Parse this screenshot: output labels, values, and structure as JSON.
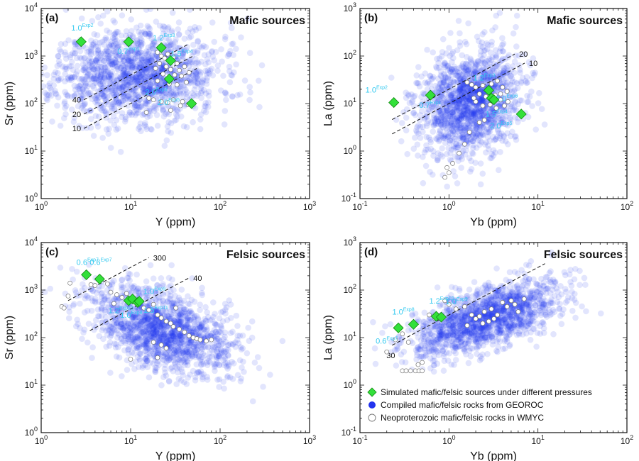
{
  "colors": {
    "georoc": "#2233ee",
    "sim_fill": "#33e03a",
    "sim_stroke": "#118811",
    "sim_label": "#33c9f0",
    "wmyc_fill": "#ffffff",
    "wmyc_stroke": "#777777"
  },
  "chart_data": [
    {
      "id": "a",
      "type": "scatter",
      "panel_label": "(a)",
      "title": "Mafic sources",
      "xlabel": "Y (ppm)",
      "ylabel": "Sr (ppm)",
      "xscale": "log",
      "yscale": "log",
      "xlim": [
        1,
        1000
      ],
      "ylim": [
        1,
        10000
      ],
      "x_tick_labels": [
        "10^0",
        "10^1",
        "10^2",
        "10^3"
      ],
      "y_tick_labels": [
        "10^0",
        "10^1",
        "10^2",
        "10^3",
        "10^4"
      ],
      "georoc_cloud": {
        "center": [
          12,
          400
        ],
        "spread_decades": [
          0.45,
          0.5
        ],
        "tilt": 0.1
      },
      "reference_lines": [
        {
          "label": "40",
          "ratio": 40
        },
        {
          "label": "20",
          "ratio": 20
        },
        {
          "label": "10",
          "ratio": 10
        }
      ],
      "simulated": [
        {
          "x": 2.8,
          "y": 2000,
          "label": "1.0",
          "exp": "Exp2"
        },
        {
          "x": 9.5,
          "y": 2000,
          "label": "0.7",
          "exp": "Exp1"
        },
        {
          "x": 22,
          "y": 1500,
          "label": "1.2",
          "exp": "Exp3"
        },
        {
          "x": 28,
          "y": 800,
          "label": "1.5",
          "exp": "Exp4"
        },
        {
          "x": 27,
          "y": 330,
          "label": "2.0",
          "exp": "Exp6"
        },
        {
          "x": 48,
          "y": 100,
          "label": "2.0",
          "exp": "Exp5"
        }
      ],
      "wmyc": [
        {
          "x": 20,
          "y": 1200
        },
        {
          "x": 22,
          "y": 1000
        },
        {
          "x": 24,
          "y": 900
        },
        {
          "x": 26,
          "y": 1100
        },
        {
          "x": 30,
          "y": 950
        },
        {
          "x": 33,
          "y": 700
        },
        {
          "x": 21,
          "y": 700
        },
        {
          "x": 19,
          "y": 550
        },
        {
          "x": 25,
          "y": 600
        },
        {
          "x": 28,
          "y": 520
        },
        {
          "x": 35,
          "y": 500
        },
        {
          "x": 40,
          "y": 600
        },
        {
          "x": 23,
          "y": 420
        },
        {
          "x": 31,
          "y": 400
        },
        {
          "x": 37,
          "y": 380
        },
        {
          "x": 45,
          "y": 450
        },
        {
          "x": 27,
          "y": 260
        },
        {
          "x": 33,
          "y": 250
        },
        {
          "x": 42,
          "y": 280
        },
        {
          "x": 20,
          "y": 300
        },
        {
          "x": 18,
          "y": 120
        },
        {
          "x": 22,
          "y": 110
        },
        {
          "x": 26,
          "y": 105
        },
        {
          "x": 30,
          "y": 120
        },
        {
          "x": 38,
          "y": 110
        },
        {
          "x": 16,
          "y": 130
        },
        {
          "x": 15,
          "y": 65
        },
        {
          "x": 28,
          "y": 72
        },
        {
          "x": 36,
          "y": 90
        },
        {
          "x": 44,
          "y": 95
        }
      ]
    },
    {
      "id": "b",
      "type": "scatter",
      "panel_label": "(b)",
      "title": "Mafic sources",
      "xlabel": "Yb (ppm)",
      "ylabel": "La (ppm)",
      "xscale": "log",
      "yscale": "log",
      "xlim": [
        0.1,
        100
      ],
      "ylim": [
        0.1,
        1000
      ],
      "x_tick_labels": [
        "10^-1",
        "10^0",
        "10^1",
        "10^2"
      ],
      "y_tick_labels": [
        "10^-1",
        "10^0",
        "10^1",
        "10^2",
        "10^3"
      ],
      "georoc_cloud": {
        "center": [
          1.7,
          10
        ],
        "spread_decades": [
          0.28,
          0.55
        ],
        "tilt": 0.35
      },
      "reference_lines": [
        {
          "label": "20",
          "ratio": 20
        },
        {
          "label": "10",
          "ratio": 10
        }
      ],
      "simulated": [
        {
          "x": 0.24,
          "y": 10.5,
          "label": "1.0",
          "exp": "Exp2"
        },
        {
          "x": 0.62,
          "y": 15,
          "label": "0.7",
          "exp": "Exp1"
        },
        {
          "x": 2.8,
          "y": 19,
          "label": "1.2",
          "exp": "Exp3"
        },
        {
          "x": 3.0,
          "y": 13,
          "label": "2.0",
          "exp": "Exp6"
        },
        {
          "x": 3.2,
          "y": 12,
          "label": "1.5",
          "exp": "Exp4"
        },
        {
          "x": 6.5,
          "y": 6,
          "label": "2.0",
          "exp": "Exp5"
        }
      ],
      "wmyc": [
        {
          "x": 1.6,
          "y": 28
        },
        {
          "x": 1.8,
          "y": 25
        },
        {
          "x": 2.0,
          "y": 22
        },
        {
          "x": 2.4,
          "y": 24
        },
        {
          "x": 2.7,
          "y": 20
        },
        {
          "x": 3.0,
          "y": 26
        },
        {
          "x": 3.5,
          "y": 30
        },
        {
          "x": 4.0,
          "y": 22
        },
        {
          "x": 4.5,
          "y": 18
        },
        {
          "x": 2.2,
          "y": 16
        },
        {
          "x": 2.6,
          "y": 14
        },
        {
          "x": 3.3,
          "y": 15
        },
        {
          "x": 3.8,
          "y": 12
        },
        {
          "x": 2.0,
          "y": 11
        },
        {
          "x": 2.4,
          "y": 9
        },
        {
          "x": 2.9,
          "y": 9.5
        },
        {
          "x": 3.4,
          "y": 8
        },
        {
          "x": 4.2,
          "y": 9
        },
        {
          "x": 4.6,
          "y": 11
        },
        {
          "x": 1.9,
          "y": 13
        },
        {
          "x": 2.2,
          "y": 4.0
        },
        {
          "x": 2.5,
          "y": 4.5
        },
        {
          "x": 1.5,
          "y": 1.4
        },
        {
          "x": 1.3,
          "y": 0.9
        },
        {
          "x": 1.1,
          "y": 0.55
        },
        {
          "x": 0.95,
          "y": 0.45
        },
        {
          "x": 1.0,
          "y": 0.35
        },
        {
          "x": 0.9,
          "y": 0.28
        },
        {
          "x": 1.7,
          "y": 2.5
        },
        {
          "x": 3.8,
          "y": 16
        }
      ]
    },
    {
      "id": "c",
      "type": "scatter",
      "panel_label": "(c)",
      "title": "Felsic sources",
      "xlabel": "Y (ppm)",
      "ylabel": "Sr (ppm)",
      "xscale": "log",
      "yscale": "log",
      "xlim": [
        1,
        1000
      ],
      "ylim": [
        1,
        10000
      ],
      "x_tick_labels": [
        "10^0",
        "10^1",
        "10^2",
        "10^3"
      ],
      "y_tick_labels": [
        "10^0",
        "10^1",
        "10^2",
        "10^3",
        "10^4"
      ],
      "georoc_cloud": {
        "center": [
          22,
          150
        ],
        "spread_decades": [
          0.4,
          0.42
        ],
        "tilt": -0.55
      },
      "reference_lines": [
        {
          "label": "300",
          "ratio": 300
        },
        {
          "label": "40",
          "ratio": 40
        }
      ],
      "simulated": [
        {
          "x": 3.2,
          "y": 2100,
          "label": "0.6",
          "exp": "Exp7"
        },
        {
          "x": 4.5,
          "y": 1700,
          "label": "0.6",
          "exp": "Exp7"
        },
        {
          "x": 9.5,
          "y": 600,
          "label": "1.0",
          "exp": "Exp8"
        },
        {
          "x": 10.5,
          "y": 650,
          "label": "1.2",
          "exp": "Exp10"
        },
        {
          "x": 12,
          "y": 550,
          "label": "1.0",
          "exp": "Exp9"
        },
        {
          "x": 12.5,
          "y": 580,
          "label": "1.5",
          "exp": "Exp11"
        }
      ],
      "wmyc": [
        {
          "x": 1.7,
          "y": 450
        },
        {
          "x": 1.8,
          "y": 420
        },
        {
          "x": 2.1,
          "y": 1400
        },
        {
          "x": 2.0,
          "y": 750
        },
        {
          "x": 3.6,
          "y": 1300
        },
        {
          "x": 4.0,
          "y": 1250
        },
        {
          "x": 5.5,
          "y": 1350
        },
        {
          "x": 6.0,
          "y": 900
        },
        {
          "x": 7.0,
          "y": 800
        },
        {
          "x": 8.0,
          "y": 700
        },
        {
          "x": 9.0,
          "y": 850
        },
        {
          "x": 14,
          "y": 420
        },
        {
          "x": 16,
          "y": 380
        },
        {
          "x": 18,
          "y": 500
        },
        {
          "x": 20,
          "y": 300
        },
        {
          "x": 22,
          "y": 260
        },
        {
          "x": 25,
          "y": 220
        },
        {
          "x": 28,
          "y": 200
        },
        {
          "x": 30,
          "y": 170
        },
        {
          "x": 35,
          "y": 150
        },
        {
          "x": 40,
          "y": 130
        },
        {
          "x": 45,
          "y": 110
        },
        {
          "x": 50,
          "y": 100
        },
        {
          "x": 55,
          "y": 95
        },
        {
          "x": 60,
          "y": 90
        },
        {
          "x": 70,
          "y": 85
        },
        {
          "x": 80,
          "y": 90
        },
        {
          "x": 18,
          "y": 80
        },
        {
          "x": 22,
          "y": 70
        },
        {
          "x": 25,
          "y": 60
        },
        {
          "x": 20,
          "y": 38
        },
        {
          "x": 10,
          "y": 35
        },
        {
          "x": 6.5,
          "y": 520
        },
        {
          "x": 32,
          "y": 420
        }
      ]
    },
    {
      "id": "d",
      "type": "scatter",
      "panel_label": "(d)",
      "title": "Felsic sources",
      "xlabel": "Yb (ppm)",
      "ylabel": "La (ppm)",
      "xscale": "log",
      "yscale": "log",
      "xlim": [
        0.1,
        100
      ],
      "ylim": [
        0.1,
        1000
      ],
      "x_tick_labels": [
        "10^-1",
        "10^0",
        "10^1",
        "10^2"
      ],
      "y_tick_labels": [
        "10^-1",
        "10^0",
        "10^1",
        "10^2",
        "10^3"
      ],
      "georoc_cloud": {
        "center": [
          2.6,
          25
        ],
        "spread_decades": [
          0.42,
          0.32
        ],
        "tilt": 0.55
      },
      "reference_lines": [
        {
          "label": "30",
          "ratio": 30
        }
      ],
      "simulated": [
        {
          "x": 0.27,
          "y": 16,
          "label": "0.6",
          "exp": "Exp7"
        },
        {
          "x": 0.4,
          "y": 19,
          "label": "1.0",
          "exp": "Exp8"
        },
        {
          "x": 0.72,
          "y": 28,
          "label": "1.2",
          "exp": "Exp10"
        },
        {
          "x": 0.82,
          "y": 27,
          "label": "1.0",
          "exp": "Exp9"
        }
      ],
      "wmyc": [
        {
          "x": 0.2,
          "y": 5
        },
        {
          "x": 0.25,
          "y": 9
        },
        {
          "x": 0.3,
          "y": 12
        },
        {
          "x": 0.35,
          "y": 8
        },
        {
          "x": 0.3,
          "y": 2.0
        },
        {
          "x": 0.33,
          "y": 2.0
        },
        {
          "x": 0.37,
          "y": 2.0
        },
        {
          "x": 0.42,
          "y": 2.0
        },
        {
          "x": 0.46,
          "y": 2.0
        },
        {
          "x": 0.5,
          "y": 2.0
        },
        {
          "x": 0.45,
          "y": 2.7
        },
        {
          "x": 0.5,
          "y": 3.0
        },
        {
          "x": 0.9,
          "y": 60
        },
        {
          "x": 1.0,
          "y": 50
        },
        {
          "x": 1.2,
          "y": 40
        },
        {
          "x": 1.5,
          "y": 45
        },
        {
          "x": 1.8,
          "y": 30
        },
        {
          "x": 2.0,
          "y": 25
        },
        {
          "x": 2.2,
          "y": 28
        },
        {
          "x": 2.5,
          "y": 35
        },
        {
          "x": 2.8,
          "y": 22
        },
        {
          "x": 3.0,
          "y": 40
        },
        {
          "x": 3.5,
          "y": 30
        },
        {
          "x": 4.0,
          "y": 55
        },
        {
          "x": 4.5,
          "y": 45
        },
        {
          "x": 5.0,
          "y": 60
        },
        {
          "x": 5.5,
          "y": 50
        },
        {
          "x": 6.0,
          "y": 35
        },
        {
          "x": 7.0,
          "y": 65
        },
        {
          "x": 3.2,
          "y": 25
        },
        {
          "x": 2.4,
          "y": 20
        },
        {
          "x": 1.6,
          "y": 18
        },
        {
          "x": 0.6,
          "y": 30
        },
        {
          "x": 0.7,
          "y": 25
        }
      ]
    }
  ],
  "legend": [
    {
      "marker": "diamond",
      "text": "Simulated mafic/felsic sources under different pressures"
    },
    {
      "marker": "filled-circle",
      "text": "Compiled mafic/felsic rocks from GEOROC"
    },
    {
      "marker": "open-circle",
      "text": "Neoproterozoic mafic/felsic rocks in WMYC"
    }
  ]
}
